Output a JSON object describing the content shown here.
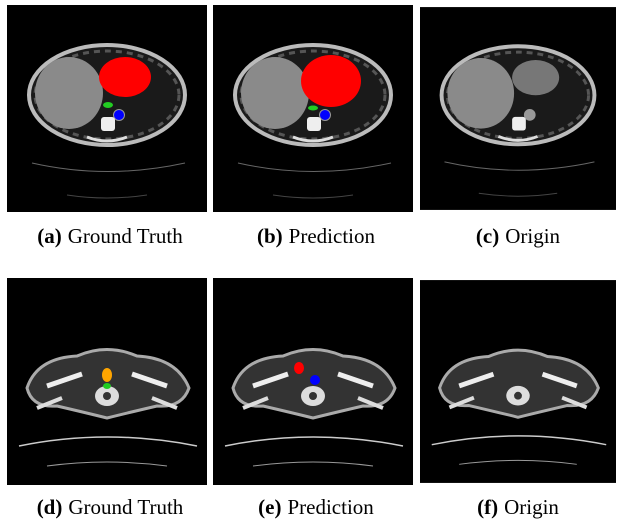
{
  "panels": [
    {
      "label": "(a)",
      "caption": "Ground Truth"
    },
    {
      "label": "(b)",
      "caption": "Prediction"
    },
    {
      "label": "(c)",
      "caption": "Origin"
    },
    {
      "label": "(d)",
      "caption": "Ground Truth"
    },
    {
      "label": "(e)",
      "caption": "Prediction"
    },
    {
      "label": "(f)",
      "caption": "Origin"
    }
  ]
}
